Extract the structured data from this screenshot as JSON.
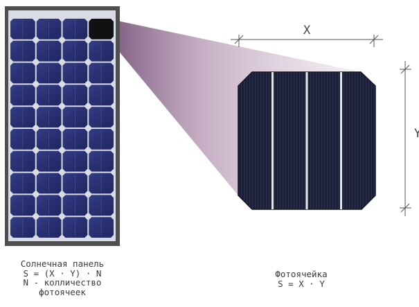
{
  "panel": {
    "rows": 10,
    "cols": 4,
    "highlighted_cell": [
      0,
      3
    ],
    "frame_color": "#4f4f4f",
    "cell_color": "#2a3170",
    "caption_lines": [
      "Солнечная панель",
      "S = (X · Y) · N",
      "N - колличество",
      "фотоячеек"
    ]
  },
  "cell": {
    "busbars": 3,
    "cell_color": "#1d2138",
    "busbar_color": "#e6e6e6",
    "caption_lines": [
      "Фотоячейка",
      "S = X · Y"
    ]
  },
  "dimensions": {
    "x_label": "X",
    "y_label": "Y"
  },
  "colors": {
    "projection": "#c9aec3"
  }
}
